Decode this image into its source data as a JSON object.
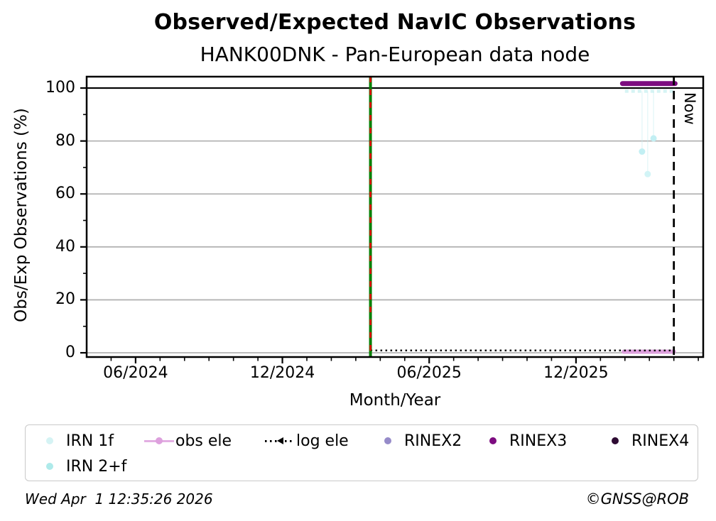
{
  "chart_data": {
    "type": "line",
    "title": "Observed/Expected NavIC Observations",
    "subtitle": "HANK00DNK - Pan-European data node",
    "xlabel": "Month/Year",
    "ylabel": "Obs/Exp Observations (%)",
    "x_encoding": "months, 0 = 2024-04",
    "xlim": [
      0,
      25.2
    ],
    "ylim": [
      -1.6,
      104.3
    ],
    "x_major_ticks": [
      {
        "x": 2,
        "label": "06/2024"
      },
      {
        "x": 8,
        "label": "12/2024"
      },
      {
        "x": 14,
        "label": "06/2025"
      },
      {
        "x": 20,
        "label": "12/2025"
      }
    ],
    "x_minor_ticks": [
      1,
      3,
      4,
      5,
      6,
      7,
      9,
      10,
      11,
      12,
      13,
      15,
      16,
      17,
      18,
      19,
      21,
      22,
      23,
      24,
      25
    ],
    "y_major_ticks": [
      {
        "y": 0,
        "label": "0"
      },
      {
        "y": 20,
        "label": "20"
      },
      {
        "y": 40,
        "label": "40"
      },
      {
        "y": 60,
        "label": "60"
      },
      {
        "y": 80,
        "label": "80"
      },
      {
        "y": 100,
        "label": "100"
      }
    ],
    "y_minor_ticks": [
      10,
      30,
      50,
      70,
      90
    ],
    "grid": {
      "y_values": [
        0,
        20,
        40,
        60,
        80
      ],
      "color": "#b3b3b3"
    },
    "hline_100": {
      "y": 100,
      "color": "#000000"
    },
    "vlines": [
      {
        "name": "equipment-change",
        "x": 11.6,
        "style": "green-with-red-dashes",
        "green": "#008000",
        "red": "#e80000"
      },
      {
        "name": "now-line",
        "x": 24.0,
        "style": "dashed",
        "color": "#000000",
        "label": "Now"
      }
    ],
    "series": [
      {
        "name": "IRN near 100",
        "style": "dashed-line",
        "color": "#aeeaea",
        "opacity": 0.5,
        "width": 4.5,
        "segment": {
          "y": 98.8,
          "x_start": 22.0,
          "x_end": 24.0
        }
      },
      {
        "name": "IRN low points",
        "style": "scatter",
        "points": [
          {
            "x": 22.7,
            "y": 76,
            "color": "#c2eff3"
          },
          {
            "x": 22.93,
            "y": 67.5,
            "color": "#d2f4f6"
          },
          {
            "x": 23.17,
            "y": 81,
            "color": "#c2eff3"
          }
        ]
      },
      {
        "name": "obs ele",
        "style": "thick-line",
        "color": "#DDA0DD",
        "width": 6,
        "segment": {
          "y": 0.4,
          "x_start": 21.95,
          "x_end": 24.0
        }
      },
      {
        "name": "log ele",
        "style": "dotted-line",
        "color": "#000000",
        "width": 2.4,
        "segment": {
          "y": 0.9,
          "x_start": 11.6,
          "x_end": 24.0
        }
      },
      {
        "name": "RINEX3",
        "style": "thick-line",
        "color": "#7d0c80",
        "width": 7,
        "segment": {
          "y": 101.7,
          "x_start": 21.9,
          "x_end": 24.05
        }
      }
    ],
    "connectors": {
      "color": "#c8f0f2",
      "opacity": 0.5,
      "width": 1.3,
      "items": [
        {
          "x": 22.7,
          "y1": 98.8,
          "y2": 76
        },
        {
          "x": 22.93,
          "y1": 98.8,
          "y2": 67.5
        },
        {
          "x": 23.17,
          "y1": 98.8,
          "y2": 81
        }
      ]
    }
  },
  "legend": {
    "items": [
      {
        "label": "IRN 1f",
        "marker": "dot",
        "color": "#d5f3f4",
        "row": 0,
        "col": 0
      },
      {
        "label": "obs ele",
        "marker": "line-dot",
        "color": "#DDA0DD",
        "row": 0,
        "col": 1
      },
      {
        "label": "log ele",
        "marker": "dotted-tri",
        "color": "#000000",
        "row": 0,
        "col": 2
      },
      {
        "label": "RINEX2",
        "marker": "dot",
        "color": "#968bc9",
        "row": 0,
        "col": 3
      },
      {
        "label": "RINEX3",
        "marker": "dot",
        "color": "#7d0c80",
        "row": 0,
        "col": 4
      },
      {
        "label": "RINEX4",
        "marker": "dot",
        "color": "#2e0b33",
        "row": 0,
        "col": 5
      },
      {
        "label": "IRN 2+f",
        "marker": "dot",
        "color": "#aeeaea",
        "row": 1,
        "col": 0
      }
    ]
  },
  "footer": {
    "timestamp": "Wed Apr  1 12:35:26 2026",
    "copyright": "©GNSS@ROB"
  }
}
